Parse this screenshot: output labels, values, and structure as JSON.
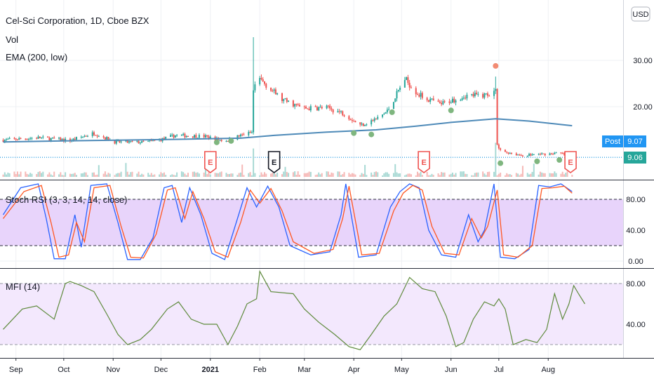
{
  "legend": {
    "symbol": "Cel-Sci Corporation, 1D, Cboe BZX",
    "volume": "Vol",
    "ema": "EMA (200, low)",
    "stoch": "Stoch RSI (3, 3, 14, 14, close)",
    "mfi": "MFI (14)"
  },
  "currency_button": "USD",
  "post_label": "Post",
  "post_price": "9.07",
  "last_price": "9.06",
  "earnings_icon": "E",
  "colors": {
    "up": "#26a69a",
    "down": "#ef5350",
    "ema": "#4e8ab8",
    "stoch_k": "#2962ff",
    "stoch_d": "#ff5722",
    "mfi": "#5e8a3c",
    "stoch_band": "#e8d4fb",
    "mfi_band": "#f3e8fd",
    "post_bg": "#2196f3",
    "last_bg": "#26a69a",
    "dot_green": "#7fb67f",
    "dot_red": "#f28b73"
  },
  "chart_data": [
    {
      "type": "candlestick",
      "pane": "price",
      "title": "Cel-Sci Corporation, 1D, Cboe BZX",
      "x_labels": [
        "Sep",
        "Oct",
        "Nov",
        "Dec",
        "2021",
        "Feb",
        "Mar",
        "Apr",
        "May",
        "Jun",
        "Jul",
        "Aug"
      ],
      "x_values": [
        "2020-09-01",
        "2020-10-01",
        "2020-11-01",
        "2020-12-01",
        "2021-01-01",
        "2021-02-01",
        "2021-03-01",
        "2021-04-01",
        "2021-05-01",
        "2021-06-01",
        "2021-07-01",
        "2021-08-01"
      ],
      "y_ticks": [
        20.0,
        30.0
      ],
      "ylim": [
        6.5,
        35
      ],
      "scale": "linear",
      "last_price": 9.06,
      "post_price": 9.07,
      "close_path": [
        [
          "2020-08-24",
          12.8
        ],
        [
          "2020-09-15",
          13.3
        ],
        [
          "2020-10-05",
          12.7
        ],
        [
          "2020-10-20",
          14.3
        ],
        [
          "2020-11-02",
          12.4
        ],
        [
          "2020-11-20",
          12.3
        ],
        [
          "2020-12-01",
          12.9
        ],
        [
          "2020-12-10",
          13.8
        ],
        [
          "2020-12-28",
          13.6
        ],
        [
          "2021-01-10",
          12.6
        ],
        [
          "2021-01-22",
          14.0
        ],
        [
          "2021-01-27",
          14.4
        ],
        [
          "2021-01-28",
          23.5
        ],
        [
          "2021-02-01",
          26.0
        ],
        [
          "2021-02-15",
          21.5
        ],
        [
          "2021-03-01",
          19.6
        ],
        [
          "2021-03-15",
          19.8
        ],
        [
          "2021-03-26",
          18.5
        ],
        [
          "2021-04-05",
          16.0
        ],
        [
          "2021-04-15",
          17.3
        ],
        [
          "2021-04-22",
          19.0
        ],
        [
          "2021-05-03",
          26.0
        ],
        [
          "2021-05-12",
          22.5
        ],
        [
          "2021-05-25",
          20.5
        ],
        [
          "2021-06-10",
          22.4
        ],
        [
          "2021-06-22",
          22.5
        ],
        [
          "2021-06-29",
          23.5
        ],
        [
          "2021-06-30",
          11.5
        ],
        [
          "2021-07-02",
          10.5
        ],
        [
          "2021-07-15",
          9.5
        ],
        [
          "2021-07-30",
          9.8
        ],
        [
          "2021-08-08",
          10.0
        ],
        [
          "2021-08-16",
          9.06
        ]
      ],
      "ema_path": [
        [
          "2020-08-24",
          12.4
        ],
        [
          "2020-10-01",
          12.6
        ],
        [
          "2020-12-01",
          12.9
        ],
        [
          "2021-01-20",
          13.2
        ],
        [
          "2021-02-10",
          13.8
        ],
        [
          "2021-03-15",
          14.5
        ],
        [
          "2021-04-15",
          15.0
        ],
        [
          "2021-05-10",
          15.8
        ],
        [
          "2021-06-01",
          16.6
        ],
        [
          "2021-06-29",
          17.4
        ],
        [
          "2021-07-20",
          16.9
        ],
        [
          "2021-08-16",
          15.9
        ]
      ],
      "spikes": [
        {
          "date": "2021-01-28",
          "high": 35.0
        },
        {
          "date": "2021-06-29",
          "high": 26.5
        }
      ],
      "earnings_markers": [
        "2021-01-01",
        "2021-02-10",
        "2021-05-15",
        "2021-08-15"
      ],
      "signal_dots": [
        {
          "date": "2021-01-05",
          "y": 12.3,
          "color": "green"
        },
        {
          "date": "2021-01-14",
          "y": 12.6,
          "color": "green"
        },
        {
          "date": "2021-04-01",
          "y": 14.3,
          "color": "green"
        },
        {
          "date": "2021-04-12",
          "y": 14.0,
          "color": "green"
        },
        {
          "date": "2021-04-25",
          "y": 18.8,
          "color": "green"
        },
        {
          "date": "2021-06-01",
          "y": 19.2,
          "color": "green"
        },
        {
          "date": "2021-06-29",
          "y": 28.8,
          "color": "red"
        },
        {
          "date": "2021-07-02",
          "y": 7.8,
          "color": "green"
        },
        {
          "date": "2021-07-25",
          "y": 8.2,
          "color": "green"
        },
        {
          "date": "2021-08-08",
          "y": 8.5,
          "color": "green"
        }
      ]
    },
    {
      "type": "line",
      "pane": "stoch_rsi",
      "title": "Stoch RSI (3, 3, 14, 14, close)",
      "y_ticks": [
        0.0,
        40.0,
        80.0
      ],
      "ylim": [
        -5,
        105
      ],
      "bands": [
        20,
        80
      ],
      "series": [
        {
          "color_key": "stoch_k",
          "points": [
            [
              "2020-08-24",
              60
            ],
            [
              "2020-09-04",
              95
            ],
            [
              "2020-09-15",
              100
            ],
            [
              "2020-09-20",
              55
            ],
            [
              "2020-09-25",
              3
            ],
            [
              "2020-10-02",
              3
            ],
            [
              "2020-10-08",
              60
            ],
            [
              "2020-10-12",
              18
            ],
            [
              "2020-10-18",
              98
            ],
            [
              "2020-10-28",
              100
            ],
            [
              "2020-11-04",
              50
            ],
            [
              "2020-11-10",
              2
            ],
            [
              "2020-11-18",
              2
            ],
            [
              "2020-11-26",
              30
            ],
            [
              "2020-12-03",
              95
            ],
            [
              "2020-12-08",
              98
            ],
            [
              "2020-12-14",
              50
            ],
            [
              "2020-12-19",
              95
            ],
            [
              "2020-12-26",
              60
            ],
            [
              "2021-01-02",
              10
            ],
            [
              "2021-01-10",
              2
            ],
            [
              "2021-01-18",
              55
            ],
            [
              "2021-01-24",
              95
            ],
            [
              "2021-01-30",
              70
            ],
            [
              "2021-02-06",
              97
            ],
            [
              "2021-02-13",
              70
            ],
            [
              "2021-02-20",
              20
            ],
            [
              "2021-03-05",
              8
            ],
            [
              "2021-03-17",
              12
            ],
            [
              "2021-03-24",
              60
            ],
            [
              "2021-03-27",
              100
            ],
            [
              "2021-04-04",
              5
            ],
            [
              "2021-04-15",
              8
            ],
            [
              "2021-04-24",
              70
            ],
            [
              "2021-04-30",
              90
            ],
            [
              "2021-05-06",
              100
            ],
            [
              "2021-05-12",
              95
            ],
            [
              "2021-05-18",
              40
            ],
            [
              "2021-05-26",
              8
            ],
            [
              "2021-06-04",
              5
            ],
            [
              "2021-06-12",
              60
            ],
            [
              "2021-06-18",
              25
            ],
            [
              "2021-06-22",
              40
            ],
            [
              "2021-06-28",
              100
            ],
            [
              "2021-07-02",
              5
            ],
            [
              "2021-07-11",
              3
            ],
            [
              "2021-07-20",
              15
            ],
            [
              "2021-07-26",
              98
            ],
            [
              "2021-08-02",
              96
            ],
            [
              "2021-08-09",
              100
            ],
            [
              "2021-08-16",
              90
            ]
          ]
        },
        {
          "color_key": "stoch_d",
          "points": [
            [
              "2020-08-24",
              55
            ],
            [
              "2020-09-06",
              90
            ],
            [
              "2020-09-17",
              98
            ],
            [
              "2020-09-23",
              50
            ],
            [
              "2020-09-28",
              5
            ],
            [
              "2020-10-04",
              8
            ],
            [
              "2020-10-09",
              50
            ],
            [
              "2020-10-14",
              25
            ],
            [
              "2020-10-20",
              95
            ],
            [
              "2020-10-30",
              98
            ],
            [
              "2020-11-06",
              45
            ],
            [
              "2020-11-12",
              5
            ],
            [
              "2020-11-20",
              4
            ],
            [
              "2020-11-28",
              35
            ],
            [
              "2020-12-05",
              92
            ],
            [
              "2020-12-10",
              95
            ],
            [
              "2020-12-16",
              55
            ],
            [
              "2020-12-21",
              90
            ],
            [
              "2020-12-28",
              55
            ],
            [
              "2021-01-04",
              12
            ],
            [
              "2021-01-12",
              5
            ],
            [
              "2021-01-20",
              50
            ],
            [
              "2021-01-26",
              92
            ],
            [
              "2021-02-01",
              75
            ],
            [
              "2021-02-08",
              94
            ],
            [
              "2021-02-15",
              65
            ],
            [
              "2021-02-22",
              25
            ],
            [
              "2021-03-07",
              10
            ],
            [
              "2021-03-19",
              15
            ],
            [
              "2021-03-25",
              55
            ],
            [
              "2021-03-29",
              97
            ],
            [
              "2021-04-06",
              8
            ],
            [
              "2021-04-17",
              10
            ],
            [
              "2021-04-26",
              65
            ],
            [
              "2021-05-02",
              88
            ],
            [
              "2021-05-08",
              98
            ],
            [
              "2021-05-14",
              92
            ],
            [
              "2021-05-20",
              45
            ],
            [
              "2021-05-28",
              10
            ],
            [
              "2021-06-06",
              8
            ],
            [
              "2021-06-14",
              55
            ],
            [
              "2021-06-20",
              30
            ],
            [
              "2021-06-24",
              45
            ],
            [
              "2021-06-30",
              92
            ],
            [
              "2021-07-04",
              8
            ],
            [
              "2021-07-13",
              5
            ],
            [
              "2021-07-22",
              20
            ],
            [
              "2021-07-28",
              94
            ],
            [
              "2021-08-04",
              95
            ],
            [
              "2021-08-11",
              97
            ],
            [
              "2021-08-16",
              88
            ]
          ]
        }
      ]
    },
    {
      "type": "line",
      "pane": "mfi",
      "title": "MFI (14)",
      "y_ticks": [
        40.0,
        80.0
      ],
      "ylim": [
        10,
        98
      ],
      "bands": [
        20,
        80
      ],
      "series": [
        {
          "color_key": "mfi",
          "points": [
            [
              "2020-08-24",
              35
            ],
            [
              "2020-09-05",
              55
            ],
            [
              "2020-09-14",
              58
            ],
            [
              "2020-09-25",
              45
            ],
            [
              "2020-10-02",
              80
            ],
            [
              "2020-10-05",
              82
            ],
            [
              "2020-10-12",
              78
            ],
            [
              "2020-10-20",
              72
            ],
            [
              "2020-10-28",
              50
            ],
            [
              "2020-11-04",
              30
            ],
            [
              "2020-11-10",
              20
            ],
            [
              "2020-11-18",
              25
            ],
            [
              "2020-11-25",
              35
            ],
            [
              "2020-12-05",
              55
            ],
            [
              "2020-12-12",
              62
            ],
            [
              "2020-12-20",
              45
            ],
            [
              "2020-12-28",
              40
            ],
            [
              "2021-01-05",
              40
            ],
            [
              "2021-01-12",
              20
            ],
            [
              "2021-01-18",
              38
            ],
            [
              "2021-01-24",
              60
            ],
            [
              "2021-01-30",
              65
            ],
            [
              "2021-02-01",
              92
            ],
            [
              "2021-02-08",
              72
            ],
            [
              "2021-02-22",
              70
            ],
            [
              "2021-03-01",
              55
            ],
            [
              "2021-03-10",
              42
            ],
            [
              "2021-03-20",
              30
            ],
            [
              "2021-03-29",
              18
            ],
            [
              "2021-04-05",
              15
            ],
            [
              "2021-04-12",
              30
            ],
            [
              "2021-04-20",
              48
            ],
            [
              "2021-04-28",
              60
            ],
            [
              "2021-05-06",
              86
            ],
            [
              "2021-05-14",
              75
            ],
            [
              "2021-05-22",
              72
            ],
            [
              "2021-05-29",
              48
            ],
            [
              "2021-06-04",
              18
            ],
            [
              "2021-06-09",
              22
            ],
            [
              "2021-06-15",
              45
            ],
            [
              "2021-06-22",
              62
            ],
            [
              "2021-06-28",
              58
            ],
            [
              "2021-07-01",
              65
            ],
            [
              "2021-07-05",
              55
            ],
            [
              "2021-07-10",
              20
            ],
            [
              "2021-07-18",
              25
            ],
            [
              "2021-07-25",
              22
            ],
            [
              "2021-07-31",
              35
            ],
            [
              "2021-08-05",
              70
            ],
            [
              "2021-08-10",
              45
            ],
            [
              "2021-08-14",
              60
            ],
            [
              "2021-08-17",
              78
            ],
            [
              "2021-08-20",
              70
            ],
            [
              "2021-08-24",
              60
            ]
          ]
        }
      ]
    }
  ]
}
